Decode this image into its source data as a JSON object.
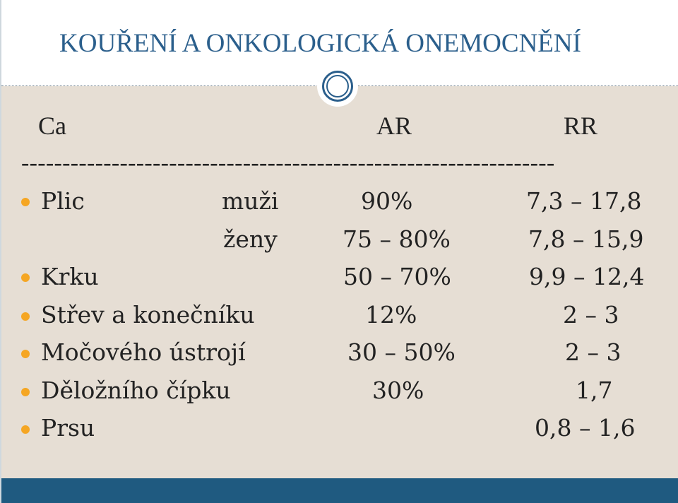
{
  "title": "KOUŘENÍ A ONKOLOGICKÁ ONEMOCNĚNÍ",
  "header": {
    "col1": "Ca",
    "col2": "AR",
    "col3": "RR"
  },
  "separator": "-----------------------------------------------------------------",
  "rows": [
    {
      "site": "Plic",
      "sex": "muži",
      "ar": "90%",
      "rr": "7,3 – 17,8"
    },
    {
      "site": "",
      "sex": "ženy",
      "ar": "75 – 80%",
      "rr": "7,8 – 15,9"
    },
    {
      "site": "Krku",
      "sex": "",
      "ar": "50 – 70%",
      "rr": "9,9 – 12,4"
    },
    {
      "site": "Střev a konečníku",
      "sex": "",
      "ar": "12%",
      "rr": "2 – 3"
    },
    {
      "site": "Močového ústrojí",
      "sex": "",
      "ar": "30 – 50%",
      "rr": "2 – 3"
    },
    {
      "site": "Děložního čípku",
      "sex": "",
      "ar": "30%",
      "rr": "1,7"
    },
    {
      "site": "Prsu",
      "sex": "",
      "ar": "",
      "rr": "0,8 – 1,6"
    }
  ],
  "colors": {
    "title": "#2b5f8c",
    "background": "#e6ded4",
    "footer": "#1f5a80",
    "bullet": "#f5a623"
  }
}
